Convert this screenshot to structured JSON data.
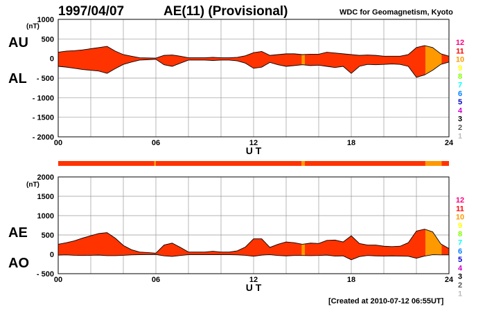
{
  "header": {
    "date": "1997/04/07",
    "title": "AE(11) (Provisional)",
    "source": "WDC for Geomagnetism, Kyoto"
  },
  "footer": {
    "created": "[Created at 2010-07-12 06:55UT]"
  },
  "panel_labels": {
    "au": "AU",
    "al": "AL",
    "ae": "AE",
    "ao": "AO",
    "unit": "(nT)"
  },
  "colors": {
    "fill_main": "#ff3300",
    "fill_mid": "#ff9900",
    "stations_bar": "#ff3300",
    "grid": "#999999"
  },
  "station_legend": [
    {
      "label": "12",
      "color": "#ff0080"
    },
    {
      "label": "11",
      "color": "#ff0000"
    },
    {
      "label": "10",
      "color": "#ff9900"
    },
    {
      "label": "9",
      "color": "#ffff00"
    },
    {
      "label": "8",
      "color": "#80ff00"
    },
    {
      "label": "7",
      "color": "#00ffff"
    },
    {
      "label": "6",
      "color": "#0080ff"
    },
    {
      "label": "5",
      "color": "#0000cc"
    },
    {
      "label": "4",
      "color": "#cc00cc"
    },
    {
      "label": "3",
      "color": "#000000"
    },
    {
      "label": "2",
      "color": "#555555"
    },
    {
      "label": "1",
      "color": "#bbbbbb"
    }
  ],
  "chart_data": [
    {
      "type": "area",
      "xlabel": "U T",
      "ylabel": "",
      "xlim": [
        0,
        24
      ],
      "ylim": [
        -2000,
        1000
      ],
      "xticks": [
        0,
        6,
        12,
        18,
        24
      ],
      "xtick_labels": [
        "00",
        "06",
        "12",
        "18",
        "24"
      ],
      "yticks": [
        1000,
        500,
        0,
        -500,
        -1000,
        -1500,
        -2000
      ],
      "ytick_labels": [
        "1000",
        "500",
        "0",
        "- 500",
        "- 1000",
        "- 1500",
        "- 2000"
      ],
      "grid": true,
      "x": [
        0,
        0.5,
        1,
        1.5,
        2,
        2.5,
        3,
        3.5,
        4,
        4.5,
        5,
        5.5,
        6,
        6.5,
        7,
        7.5,
        8,
        8.5,
        9,
        9.5,
        10,
        10.5,
        11,
        11.5,
        12,
        12.5,
        13,
        13.5,
        14,
        14.5,
        15,
        15.5,
        16,
        16.5,
        17,
        17.5,
        18,
        18.5,
        19,
        19.5,
        20,
        20.5,
        21,
        21.5,
        22,
        22.5,
        23,
        23.5,
        24
      ],
      "series": [
        {
          "name": "AU",
          "values": [
            160,
            190,
            200,
            220,
            250,
            280,
            310,
            190,
            100,
            60,
            20,
            15,
            10,
            80,
            90,
            60,
            20,
            20,
            20,
            30,
            20,
            20,
            30,
            70,
            150,
            180,
            80,
            100,
            120,
            120,
            100,
            110,
            110,
            160,
            140,
            120,
            100,
            80,
            90,
            80,
            60,
            60,
            60,
            100,
            280,
            330,
            280,
            120,
            60
          ]
        },
        {
          "name": "AL",
          "values": [
            -200,
            -220,
            -250,
            -280,
            -300,
            -320,
            -380,
            -260,
            -150,
            -90,
            -40,
            -30,
            -20,
            -160,
            -200,
            -120,
            -40,
            -40,
            -40,
            -50,
            -40,
            -40,
            -60,
            -120,
            -250,
            -220,
            -100,
            -160,
            -200,
            -180,
            -160,
            -180,
            -170,
            -200,
            -230,
            -200,
            -380,
            -200,
            -150,
            -160,
            -150,
            -140,
            -150,
            -200,
            -480,
            -420,
            -300,
            -150,
            -90
          ]
        }
      ],
      "coverage_colors": [
        {
          "from": 14.95,
          "to": 15.15,
          "color": "#ff9900"
        },
        {
          "from": 22.55,
          "to": 23.55,
          "color": "#ff9900"
        }
      ]
    },
    {
      "type": "area",
      "xlabel": "U T",
      "ylabel": "",
      "xlim": [
        0,
        24
      ],
      "ylim": [
        -500,
        2000
      ],
      "xticks": [
        0,
        6,
        12,
        18,
        24
      ],
      "xtick_labels": [
        "00",
        "06",
        "12",
        "18",
        "24"
      ],
      "yticks": [
        2000,
        1500,
        1000,
        500,
        0,
        -500
      ],
      "ytick_labels": [
        "2000",
        "1500",
        "1000",
        "500",
        "0",
        "- 500"
      ],
      "grid": true,
      "x": [
        0,
        0.5,
        1,
        1.5,
        2,
        2.5,
        3,
        3.5,
        4,
        4.5,
        5,
        5.5,
        6,
        6.5,
        7,
        7.5,
        8,
        8.5,
        9,
        9.5,
        10,
        10.5,
        11,
        11.5,
        12,
        12.5,
        13,
        13.5,
        14,
        14.5,
        15,
        15.5,
        16,
        16.5,
        17,
        17.5,
        18,
        18.5,
        19,
        19.5,
        20,
        20.5,
        21,
        21.5,
        22,
        22.5,
        23,
        23.5,
        24
      ],
      "series": [
        {
          "name": "AE",
          "values": [
            260,
            300,
            350,
            420,
            480,
            540,
            560,
            420,
            230,
            120,
            60,
            45,
            30,
            240,
            290,
            180,
            60,
            60,
            60,
            80,
            60,
            60,
            90,
            190,
            400,
            400,
            180,
            260,
            320,
            300,
            260,
            290,
            280,
            360,
            370,
            320,
            480,
            280,
            240,
            240,
            210,
            200,
            210,
            300,
            600,
            650,
            580,
            270,
            150
          ]
        },
        {
          "name": "AO",
          "values": [
            -20,
            -15,
            -25,
            -30,
            -25,
            -20,
            -35,
            -35,
            -25,
            -15,
            -10,
            -8,
            -5,
            -40,
            -55,
            -30,
            -10,
            -10,
            -10,
            -10,
            -10,
            -10,
            -15,
            -25,
            -50,
            -20,
            -10,
            -30,
            -40,
            -30,
            -30,
            -35,
            -30,
            -20,
            -45,
            -40,
            -140,
            -60,
            -30,
            -40,
            -45,
            -40,
            -45,
            -50,
            -100,
            -45,
            -10,
            -15,
            -15
          ]
        }
      ],
      "coverage_colors": [
        {
          "from": 14.95,
          "to": 15.15,
          "color": "#ff9900"
        },
        {
          "from": 22.55,
          "to": 23.55,
          "color": "#ff9900"
        }
      ]
    }
  ],
  "station_bar": {
    "segments": [
      {
        "from": 0,
        "to": 5.9,
        "color": "#ff3300"
      },
      {
        "from": 5.9,
        "to": 6.0,
        "color": "#ff9900"
      },
      {
        "from": 6.0,
        "to": 14.95,
        "color": "#ff3300"
      },
      {
        "from": 14.95,
        "to": 15.15,
        "color": "#ff9900"
      },
      {
        "from": 15.15,
        "to": 22.55,
        "color": "#ff3300"
      },
      {
        "from": 22.55,
        "to": 23.55,
        "color": "#ff9900"
      },
      {
        "from": 23.55,
        "to": 24,
        "color": "#ff3300"
      }
    ]
  }
}
